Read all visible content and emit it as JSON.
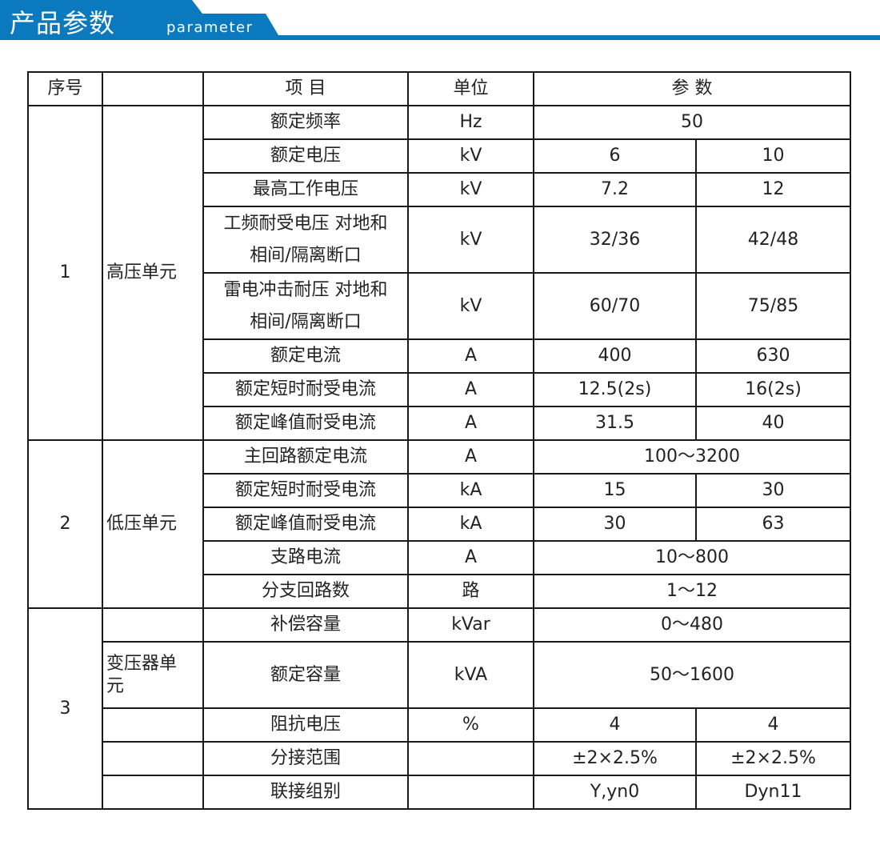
{
  "header": {
    "title": "产品参数",
    "subtitle": "parameter",
    "accent": "#0a79bd"
  },
  "table": {
    "columns": {
      "seq": "序号",
      "category": "",
      "item": "项 目",
      "unit": "单位",
      "params": "参 数"
    },
    "groups": [
      {
        "seq": "1",
        "category": "高压单元",
        "rows": [
          {
            "item": "额定频率",
            "unit": "Hz",
            "values": [
              "50"
            ]
          },
          {
            "item": "额定电压",
            "unit": "kV",
            "values": [
              "6",
              "10"
            ]
          },
          {
            "item": "最高工作电压",
            "unit": "kV",
            "values": [
              "7.2",
              "12"
            ]
          },
          {
            "item_lines": [
              "工频耐受电压 对地和",
              "相间/隔离断口"
            ],
            "unit": "kV",
            "values": [
              "32/36",
              "42/48"
            ]
          },
          {
            "item_lines": [
              "雷电冲击耐压 对地和",
              "相间/隔离断口"
            ],
            "unit": "kV",
            "values": [
              "60/70",
              "75/85"
            ]
          },
          {
            "item": "额定电流",
            "unit": "A",
            "values": [
              "400",
              "630"
            ]
          },
          {
            "item": "额定短时耐受电流",
            "unit": "A",
            "values": [
              "12.5(2s)",
              "16(2s)"
            ]
          },
          {
            "item": "额定峰值耐受电流",
            "unit": "A",
            "values": [
              "31.5",
              "40"
            ]
          }
        ]
      },
      {
        "seq": "2",
        "category": "低压单元",
        "rows": [
          {
            "item": "主回路额定电流",
            "unit": "A",
            "values": [
              "100～3200"
            ]
          },
          {
            "item": "额定短时耐受电流",
            "unit": "kA",
            "values": [
              "15",
              "30"
            ]
          },
          {
            "item": "额定峰值耐受电流",
            "unit": "kA",
            "values": [
              "30",
              "63"
            ]
          },
          {
            "item": "支路电流",
            "unit": "A",
            "values": [
              "10～800"
            ]
          },
          {
            "item": "分支回路数",
            "unit": "路",
            "values": [
              "1～12"
            ]
          }
        ]
      },
      {
        "seq": "3",
        "category_lines": [
          "变压器单",
          "元"
        ],
        "rows": [
          {
            "item": "补偿容量",
            "unit": "kVar",
            "values": [
              "0～480"
            ]
          },
          {
            "item": "额定容量",
            "unit": "kVA",
            "values": [
              "50～1600"
            ]
          },
          {
            "item": "阻抗电压",
            "unit": "%",
            "values": [
              "4",
              "4"
            ]
          },
          {
            "item": "分接范围",
            "unit": "",
            "values": [
              "±2×2.5%",
              "±2×2.5%"
            ]
          },
          {
            "item": "联接组别",
            "unit": "",
            "values": [
              "Y,yn0",
              "Dyn11"
            ]
          }
        ]
      }
    ]
  }
}
